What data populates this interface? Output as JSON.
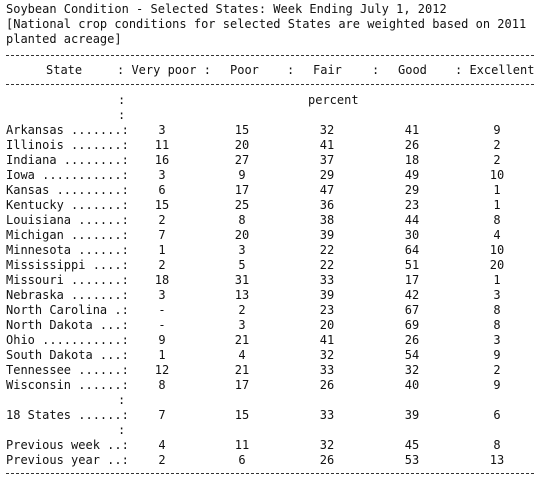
{
  "title_lines": [
    "Soybean Condition - Selected States: Week Ending July 1, 2012",
    "[National crop conditions for selected States are weighted based on 2011",
    "planted acreage]"
  ],
  "columns": [
    "State",
    ": Very poor :",
    "Poor",
    ":",
    "Fair",
    ":",
    "Good",
    ": Excellent"
  ],
  "header_cols": [
    {
      "label": "State"
    },
    {
      "label": ": Very poor :"
    },
    {
      "label": "Poor"
    },
    {
      "label": ":"
    },
    {
      "label": "Fair"
    },
    {
      "label": ":"
    },
    {
      "label": "Good"
    },
    {
      "label": ": Excellent"
    }
  ],
  "unit_label": "percent",
  "colon": ":",
  "rows": [
    {
      "state": "Arkansas .......:",
      "v": [
        "3",
        "15",
        "32",
        "41",
        "9"
      ]
    },
    {
      "state": "Illinois .......:",
      "v": [
        "11",
        "20",
        "41",
        "26",
        "2"
      ]
    },
    {
      "state": "Indiana ........:",
      "v": [
        "16",
        "27",
        "37",
        "18",
        "2"
      ]
    },
    {
      "state": "Iowa ...........:",
      "v": [
        "3",
        "9",
        "29",
        "49",
        "10"
      ]
    },
    {
      "state": "Kansas .........:",
      "v": [
        "6",
        "17",
        "47",
        "29",
        "1"
      ]
    },
    {
      "state": "Kentucky .......:",
      "v": [
        "15",
        "25",
        "36",
        "23",
        "1"
      ]
    },
    {
      "state": "Louisiana ......:",
      "v": [
        "2",
        "8",
        "38",
        "44",
        "8"
      ]
    },
    {
      "state": "Michigan .......:",
      "v": [
        "7",
        "20",
        "39",
        "30",
        "4"
      ]
    },
    {
      "state": "Minnesota ......:",
      "v": [
        "1",
        "3",
        "22",
        "64",
        "10"
      ]
    },
    {
      "state": "Mississippi ....:",
      "v": [
        "2",
        "5",
        "22",
        "51",
        "20"
      ]
    },
    {
      "state": "Missouri .......:",
      "v": [
        "18",
        "31",
        "33",
        "17",
        "1"
      ]
    },
    {
      "state": "Nebraska .......:",
      "v": [
        "3",
        "13",
        "39",
        "42",
        "3"
      ]
    },
    {
      "state": "North Carolina .:",
      "v": [
        "-",
        "2",
        "23",
        "67",
        "8"
      ]
    },
    {
      "state": "North Dakota ...:",
      "v": [
        "-",
        "3",
        "20",
        "69",
        "8"
      ]
    },
    {
      "state": "Ohio ...........:",
      "v": [
        "9",
        "21",
        "41",
        "26",
        "3"
      ]
    },
    {
      "state": "South Dakota ...:",
      "v": [
        "1",
        "4",
        "32",
        "54",
        "9"
      ]
    },
    {
      "state": "Tennessee ......:",
      "v": [
        "12",
        "21",
        "33",
        "32",
        "2"
      ]
    },
    {
      "state": "Wisconsin ......:",
      "v": [
        "8",
        "17",
        "26",
        "40",
        "9"
      ]
    }
  ],
  "total_row": {
    "state": "18 States ......:",
    "v": [
      "7",
      "15",
      "33",
      "39",
      "6"
    ]
  },
  "prev_rows": [
    {
      "state": "Previous week ..:",
      "v": [
        "4",
        "11",
        "32",
        "45",
        "8"
      ]
    },
    {
      "state": "Previous year ..:",
      "v": [
        "2",
        "6",
        "26",
        "53",
        "13"
      ]
    }
  ]
}
